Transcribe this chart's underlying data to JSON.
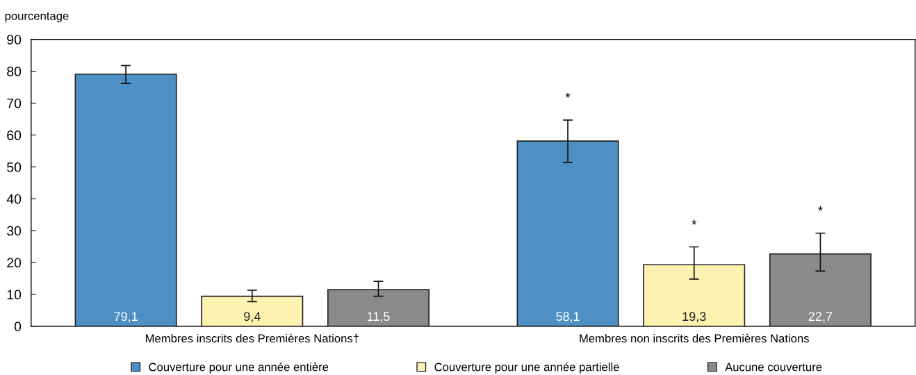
{
  "chart_data": {
    "type": "bar",
    "ylabel": "pourcentage",
    "categories": [
      "Membres inscrits des Premières Nations†",
      "Membres non inscrits des Premières Nations"
    ],
    "series": [
      {
        "name": "Couverture pour une année entière",
        "color": "#4f90c4",
        "values": [
          79.1,
          58.1
        ],
        "value_labels": [
          "79,1",
          "58,1"
        ],
        "errors": [
          [
            76.2,
            81.8
          ],
          [
            51.4,
            64.7
          ]
        ]
      },
      {
        "name": "Couverture pour une année partielle",
        "color": "#fef2b0",
        "values": [
          9.4,
          19.3
        ],
        "value_labels": [
          "9,4",
          "19,3"
        ],
        "errors": [
          [
            7.7,
            11.3
          ],
          [
            14.8,
            24.9
          ]
        ]
      },
      {
        "name": "Aucune couverture",
        "color": "#888a8b",
        "values": [
          11.5,
          22.7
        ],
        "value_labels": [
          "11,5",
          "22,7"
        ],
        "errors": [
          [
            9.4,
            14.1
          ],
          [
            17.3,
            29.2
          ]
        ]
      }
    ],
    "annotations": [
      "*",
      "*",
      "*"
    ],
    "ylim": [
      0,
      90
    ],
    "yticks": [
      0,
      10,
      20,
      30,
      40,
      50,
      60,
      70,
      80,
      90
    ],
    "legend": "bottom",
    "marker": "square",
    "grid": false
  }
}
